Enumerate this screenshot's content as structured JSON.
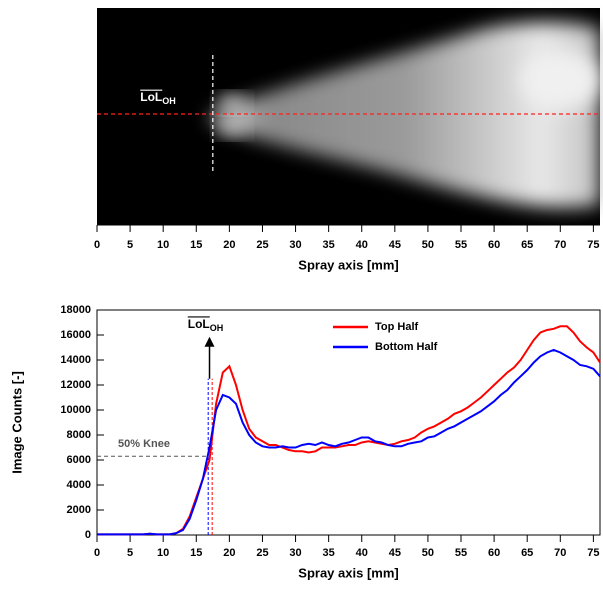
{
  "chart_data": [
    {
      "type": "image",
      "xlabel": "Spray axis [mm]",
      "xlim": [
        0,
        76
      ],
      "xticks": [
        0,
        5,
        10,
        15,
        20,
        25,
        30,
        35,
        40,
        45,
        50,
        55,
        60,
        65,
        70,
        75
      ],
      "annotation": {
        "text": "LoL",
        "subscript": "OH"
      },
      "marker_x": 17.5
    },
    {
      "type": "line",
      "xlabel": "Spray axis [mm]",
      "ylabel": "Image Counts [-]",
      "xlim": [
        0,
        76
      ],
      "ylim": [
        0,
        18000
      ],
      "xticks": [
        0,
        5,
        10,
        15,
        20,
        25,
        30,
        35,
        40,
        45,
        50,
        55,
        60,
        65,
        70,
        75
      ],
      "yticks": [
        0,
        2000,
        4000,
        6000,
        8000,
        10000,
        12000,
        14000,
        16000,
        18000
      ],
      "legend": "upper center",
      "x": [
        0,
        1,
        2,
        3,
        4,
        5,
        6,
        7,
        8,
        9,
        10,
        11,
        12,
        13,
        14,
        15,
        16,
        17,
        18,
        19,
        20,
        21,
        22,
        23,
        24,
        25,
        26,
        27,
        28,
        29,
        30,
        31,
        32,
        33,
        34,
        35,
        36,
        37,
        38,
        39,
        40,
        41,
        42,
        43,
        44,
        45,
        46,
        47,
        48,
        49,
        50,
        51,
        52,
        53,
        54,
        55,
        56,
        57,
        58,
        59,
        60,
        61,
        62,
        63,
        64,
        65,
        66,
        67,
        68,
        69,
        70,
        71,
        72,
        73,
        74,
        75,
        76
      ],
      "series": [
        {
          "name": "Top Half",
          "color": "#ff0000",
          "values": [
            50,
            50,
            50,
            50,
            50,
            50,
            50,
            50,
            100,
            50,
            50,
            50,
            150,
            500,
            1500,
            3000,
            4500,
            6000,
            10500,
            13000,
            13500,
            12000,
            10000,
            8500,
            7800,
            7500,
            7200,
            7200,
            7000,
            6800,
            6700,
            6700,
            6600,
            6700,
            7000,
            7000,
            7000,
            7100,
            7200,
            7200,
            7400,
            7500,
            7400,
            7300,
            7200,
            7300,
            7500,
            7600,
            7800,
            8200,
            8500,
            8700,
            9000,
            9300,
            9700,
            9900,
            10200,
            10600,
            11000,
            11500,
            12000,
            12500,
            13000,
            13400,
            14000,
            14800,
            15600,
            16200,
            16400,
            16500,
            16700,
            16700,
            16200,
            15500,
            15000,
            14600,
            13800
          ]
        },
        {
          "name": "Bottom Half",
          "color": "#0000ff",
          "values": [
            50,
            50,
            50,
            50,
            50,
            50,
            50,
            50,
            100,
            50,
            50,
            50,
            150,
            400,
            1300,
            2800,
            4500,
            7000,
            10000,
            11200,
            11000,
            10500,
            9000,
            8000,
            7400,
            7100,
            7000,
            7000,
            7100,
            7000,
            7000,
            7200,
            7300,
            7200,
            7400,
            7200,
            7100,
            7300,
            7400,
            7600,
            7800,
            7800,
            7500,
            7400,
            7200,
            7100,
            7100,
            7300,
            7400,
            7500,
            7800,
            7900,
            8200,
            8500,
            8700,
            9000,
            9300,
            9600,
            9900,
            10300,
            10700,
            11200,
            11600,
            12200,
            12700,
            13200,
            13800,
            14300,
            14600,
            14800,
            14600,
            14300,
            14000,
            13600,
            13500,
            13300,
            12700
          ]
        }
      ],
      "knee": {
        "text": "50% Knee",
        "y": 6300,
        "x_end": 17
      },
      "lol": {
        "text": "LoL",
        "subscript": "OH",
        "x": 17,
        "y_from": 12500,
        "y_to": 15700
      },
      "lol_lines": [
        {
          "x": 17.4,
          "color": "#ff0000",
          "y_top": 12500
        },
        {
          "x": 16.8,
          "color": "#0000ff",
          "y_top": 12500
        }
      ]
    }
  ]
}
